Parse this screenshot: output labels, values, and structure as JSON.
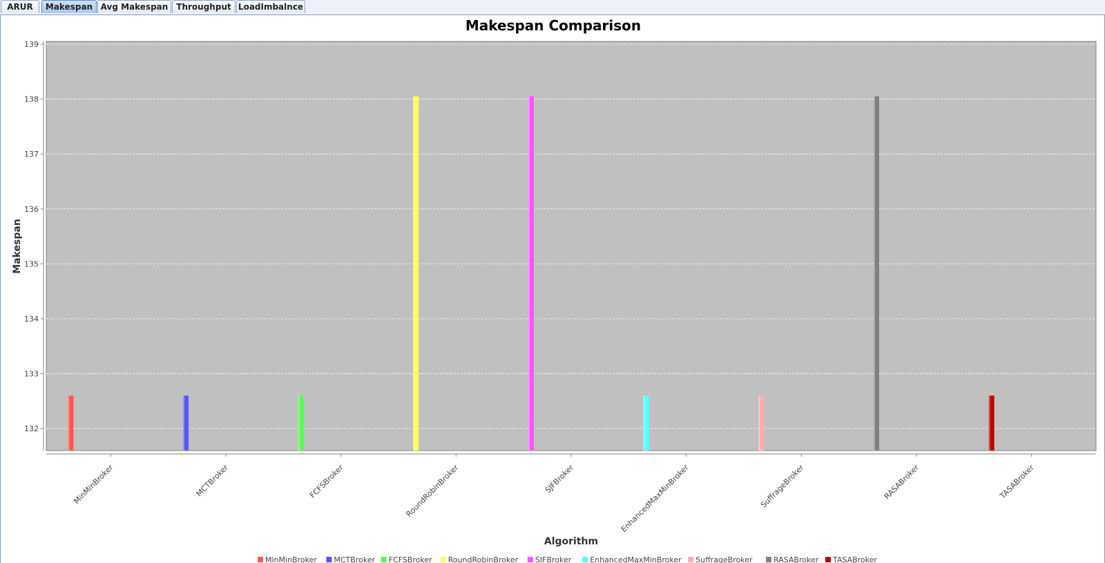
{
  "tabs": [
    {
      "label": "ARUR",
      "active": false
    },
    {
      "label": "Makespan",
      "active": true
    },
    {
      "label": "Avg Makespan",
      "active": false
    },
    {
      "label": "Throughput",
      "active": false
    },
    {
      "label": "LoadImbalnce",
      "active": false
    }
  ],
  "chart_data": {
    "type": "bar",
    "title": "Makespan Comparison",
    "xlabel": "Algorithm",
    "ylabel": "Makespan",
    "ylim": [
      131.6,
      139.05
    ],
    "yticks": [
      132,
      133,
      134,
      135,
      136,
      137,
      138,
      139
    ],
    "grid": true,
    "legend_position": "bottom",
    "plot_background": "#c0c0c0",
    "categories": [
      "MinMinBroker",
      "MCTBroker",
      "FCFSBroker",
      "RoundRobinBroker",
      "SJFBroker",
      "EnhancedMaxMinBroker",
      "SuffrageBroker",
      "RASABroker",
      "TASABroker"
    ],
    "series": [
      {
        "name": "MinMinBroker",
        "color": "#ff5555",
        "category_index": 0,
        "value": 132.6
      },
      {
        "name": "MCTBroker",
        "color": "#5555ff",
        "category_index": 1,
        "value": 132.6
      },
      {
        "name": "FCFSBroker",
        "color": "#55ff55",
        "category_index": 2,
        "value": 132.6
      },
      {
        "name": "RoundRobinBroker",
        "color": "#ffff55",
        "category_index": 3,
        "value": 138.05
      },
      {
        "name": "SJFBroker",
        "color": "#ff55ff",
        "category_index": 4,
        "value": 138.05
      },
      {
        "name": "EnhancedMaxMinBroker",
        "color": "#55ffff",
        "category_index": 5,
        "value": 132.6
      },
      {
        "name": "SuffrageBroker",
        "color": "#ffafaf",
        "category_index": 6,
        "value": 132.6
      },
      {
        "name": "RASABroker",
        "color": "#808080",
        "category_index": 7,
        "value": 138.05
      },
      {
        "name": "TASABroker",
        "color": "#c00000",
        "category_index": 8,
        "value": 132.6
      }
    ]
  }
}
